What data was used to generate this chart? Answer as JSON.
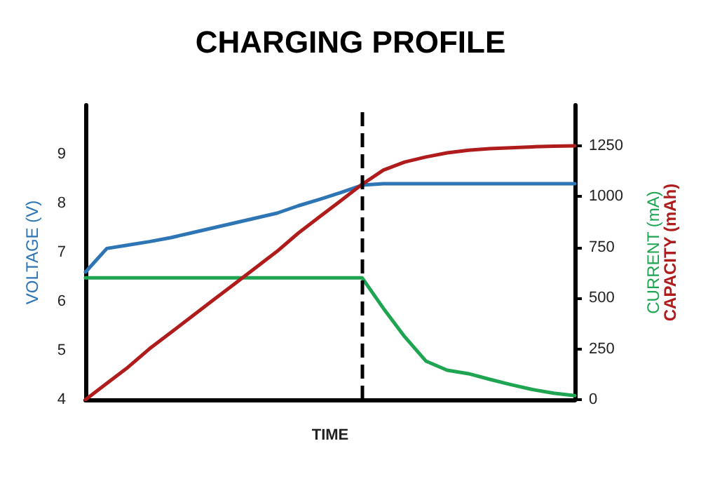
{
  "chart_data": {
    "type": "line",
    "title": "CHARGING PROFILE",
    "xlabel": "TIME",
    "ylabel": "VOLTAGE (V)",
    "y2label": "CURRENT (mA)",
    "annotations": [
      "CAPACITY (mAh)"
    ],
    "categories": [
      null,
      null,
      null,
      null,
      null,
      null,
      null,
      null,
      null,
      null,
      null,
      null,
      null,
      null,
      null,
      null,
      null,
      null,
      null,
      null,
      null,
      null,
      null,
      null
    ],
    "ylim": [
      4,
      10
    ],
    "yticks": [
      4,
      5,
      6,
      7,
      8,
      9
    ],
    "y2lim": [
      0,
      1450
    ],
    "y2ticks": [
      0,
      250,
      500,
      750,
      1000,
      1250
    ],
    "tick_labels": "y",
    "marker": "none",
    "line_style": "solid",
    "series": [
      {
        "color": "#2e75b6",
        "values": [
          6.6,
          7.08,
          7.15,
          7.22,
          7.3,
          7.4,
          7.5,
          7.6,
          7.7,
          7.8,
          7.95,
          8.08,
          8.22,
          8.37,
          8.4,
          8.4,
          8.4,
          8.4,
          8.4,
          8.4,
          8.4,
          8.4,
          8.4,
          8.4
        ]
      },
      {
        "color": "#1fa552",
        "axis": "y2",
        "values": [
          600,
          600,
          600,
          600,
          600,
          600,
          600,
          600,
          600,
          600,
          600,
          600,
          600,
          600,
          450,
          310,
          190,
          145,
          128,
          100,
          74,
          50,
          32,
          20
        ]
      },
      {
        "color": "#b01c1c",
        "axis": "y2",
        "values": [
          0,
          80,
          160,
          250,
          330,
          410,
          490,
          570,
          650,
          730,
          820,
          900,
          980,
          1060,
          1130,
          1170,
          1195,
          1215,
          1228,
          1236,
          1240,
          1245,
          1248,
          1250
        ]
      }
    ]
  }
}
